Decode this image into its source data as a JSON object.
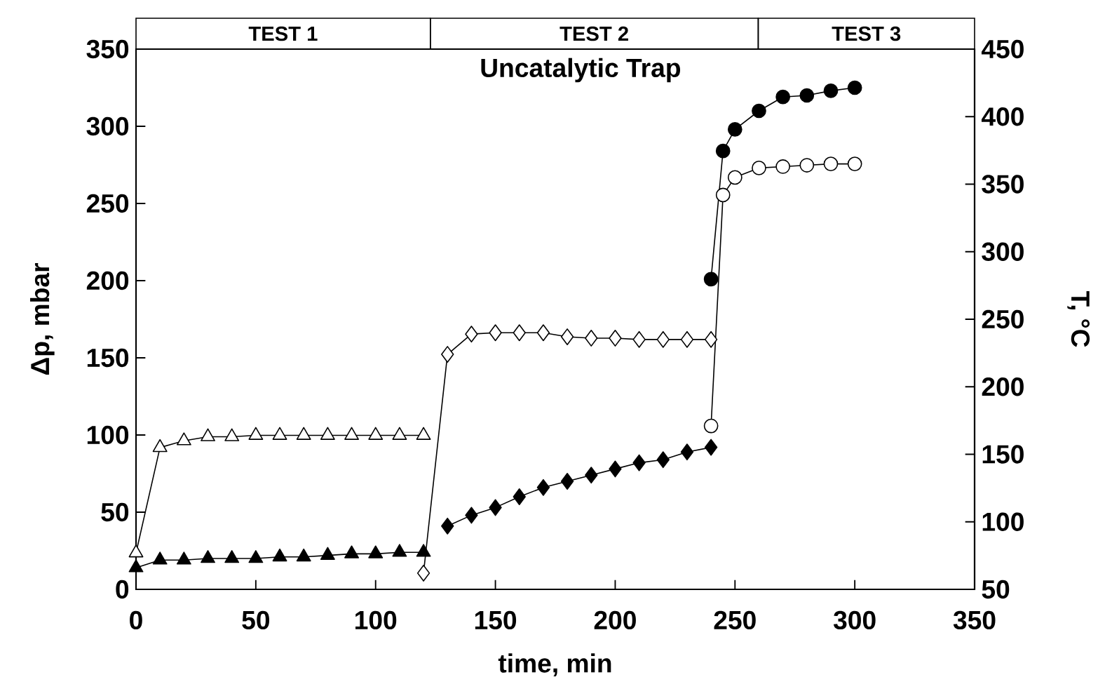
{
  "chart_data": {
    "type": "line",
    "title": "Uncatalytic Trap",
    "xlabel": "time, min",
    "ylabel": "Δp, mbar",
    "y2label": "T, °C",
    "xlim": [
      0,
      350
    ],
    "xticks": [
      0,
      50,
      100,
      150,
      200,
      250,
      300,
      350
    ],
    "ylim": [
      0,
      350
    ],
    "yticks": [
      0,
      50,
      100,
      150,
      200,
      250,
      300,
      350
    ],
    "y2lim": [
      50,
      450
    ],
    "y2ticks": [
      50,
      100,
      150,
      200,
      250,
      300,
      350,
      400,
      450
    ],
    "annotations": [
      "TEST 1",
      "TEST 2",
      "TEST 3"
    ],
    "grid": false,
    "line_style": "solid",
    "series": [
      {
        "color": "#000000",
        "marker": "triangle",
        "axis": "y",
        "x": [
          0,
          10,
          20,
          30,
          40,
          50,
          60,
          70,
          80,
          90,
          100,
          110,
          120
        ],
        "values": [
          14,
          19,
          19,
          20,
          20,
          20,
          21,
          21,
          22,
          23,
          23,
          24,
          24
        ]
      },
      {
        "color": "#ffffff",
        "marker": "triangle",
        "axis": "y2",
        "x": [
          0,
          10,
          20,
          30,
          40,
          50,
          60,
          70,
          80,
          90,
          100,
          110,
          120
        ],
        "values": [
          77,
          155,
          160,
          163,
          163,
          164,
          164,
          164,
          164,
          164,
          164,
          164,
          164
        ]
      },
      {
        "color": "#ffffff",
        "marker": "diamond",
        "axis": "y2",
        "x": [
          120,
          130,
          140,
          150,
          160,
          170,
          180,
          190,
          200,
          210,
          220,
          230,
          240
        ],
        "values": [
          62,
          224,
          239,
          240,
          240,
          240,
          237,
          236,
          236,
          235,
          235,
          235,
          235
        ]
      },
      {
        "color": "#000000",
        "marker": "diamond",
        "axis": "y",
        "x": [
          130,
          140,
          150,
          160,
          170,
          180,
          190,
          200,
          210,
          220,
          230,
          240
        ],
        "values": [
          41,
          48,
          53,
          60,
          66,
          70,
          74,
          78,
          82,
          84,
          89,
          92
        ]
      },
      {
        "color": "#ffffff",
        "marker": "circle",
        "axis": "y2",
        "x": [
          240,
          245,
          250,
          260,
          270,
          280,
          290,
          300
        ],
        "values": [
          171,
          342,
          355,
          362,
          363,
          364,
          365,
          365
        ]
      },
      {
        "color": "#000000",
        "marker": "circle",
        "axis": "y",
        "x": [
          240,
          245,
          250,
          260,
          270,
          280,
          290,
          300
        ],
        "values": [
          201,
          284,
          298,
          310,
          319,
          320,
          323,
          325
        ]
      }
    ]
  }
}
